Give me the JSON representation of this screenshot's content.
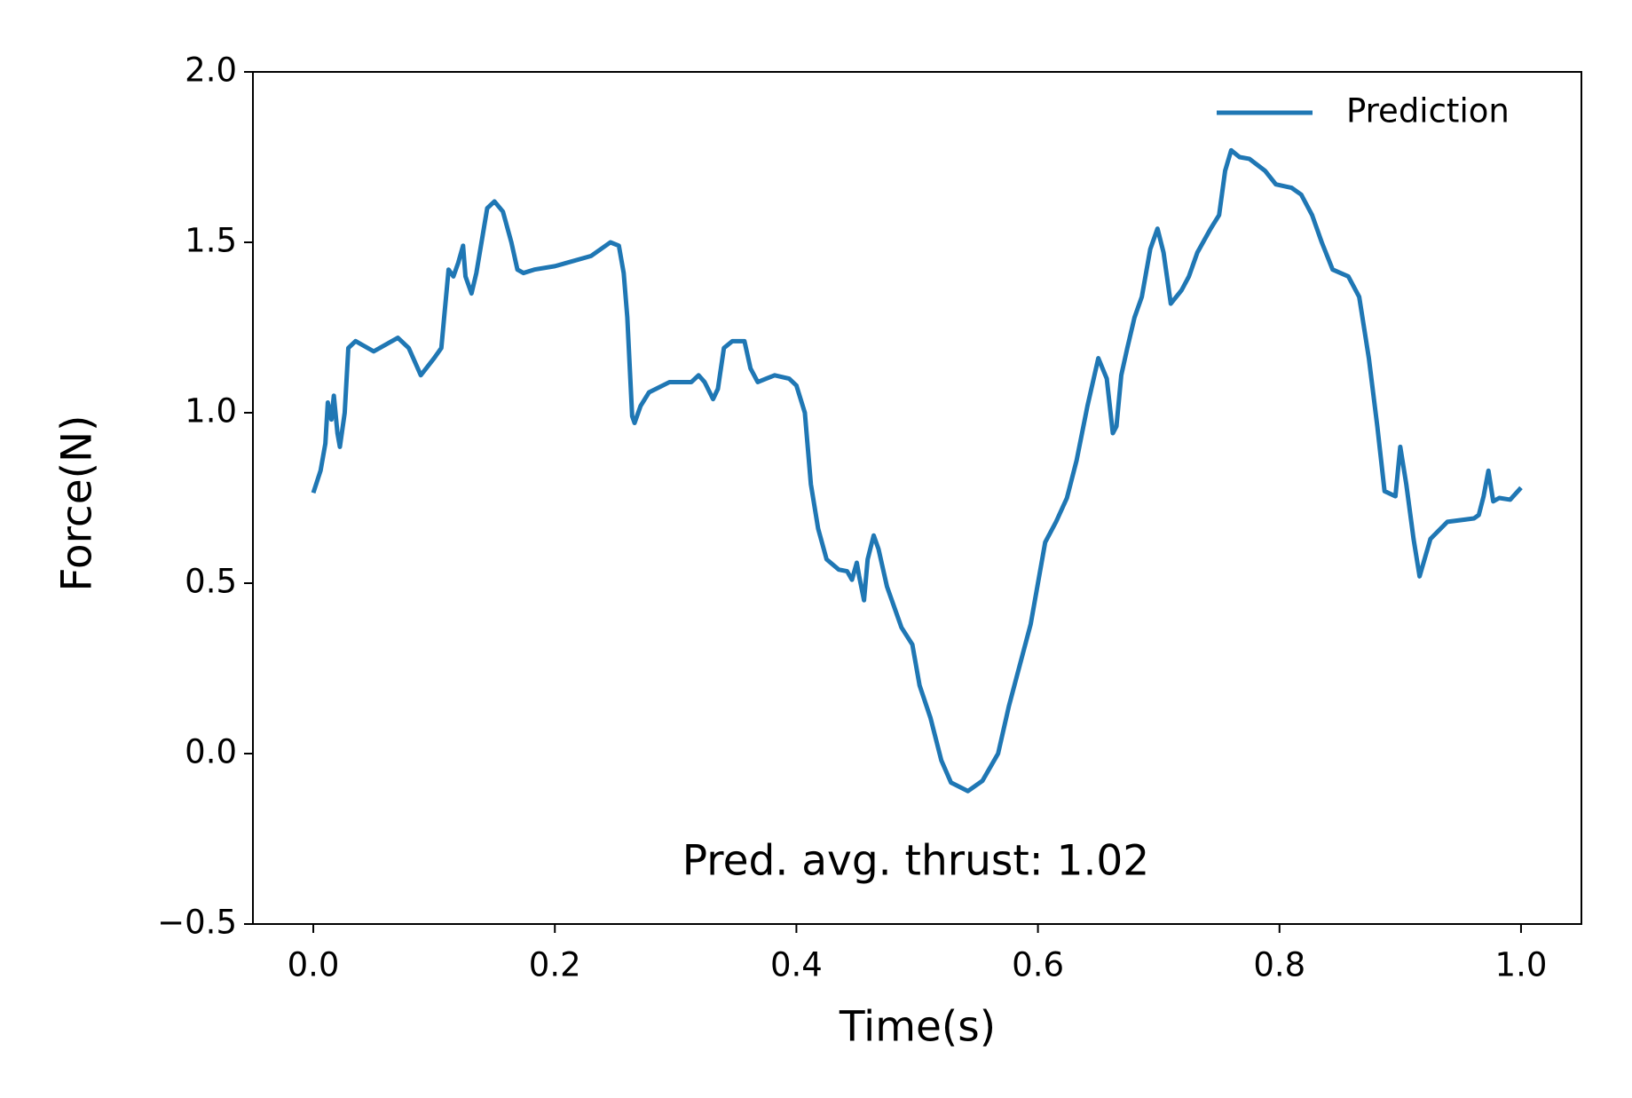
{
  "chart_data": {
    "type": "line",
    "xlabel": "Time(s)",
    "ylabel": "Force(N)",
    "annotation": "Pred. avg. thrust:  1.02",
    "legend": "upper right",
    "xlim": [
      -0.05,
      1.05
    ],
    "xticks": [
      {
        "value": 0,
        "label": "0.0"
      },
      {
        "value": 0.2,
        "label": "0.2"
      },
      {
        "value": 0.4,
        "label": "0.4"
      },
      {
        "value": 0.6,
        "label": "0.6"
      },
      {
        "value": 0.8,
        "label": "0.8"
      },
      {
        "value": 1,
        "label": "1.0"
      }
    ],
    "ylim": [
      -0.5,
      2.0
    ],
    "yticks": [
      {
        "value": -0.5,
        "label": "−0.5"
      },
      {
        "value": 0,
        "label": "0.0"
      },
      {
        "value": 0.5,
        "label": "0.5"
      },
      {
        "value": 1,
        "label": "1.0"
      },
      {
        "value": 1.5,
        "label": "1.5"
      },
      {
        "value": 2,
        "label": "2.0"
      }
    ],
    "grid": false,
    "x": [
      0,
      0.006,
      0.01,
      0.012,
      0.015,
      0.017,
      0.02,
      0.022,
      0.026,
      0.029,
      0.035,
      0.05,
      0.07,
      0.079,
      0.089,
      0.1,
      0.106,
      0.112,
      0.116,
      0.12,
      0.124,
      0.126,
      0.131,
      0.135,
      0.144,
      0.15,
      0.157,
      0.164,
      0.169,
      0.174,
      0.183,
      0.2,
      0.23,
      0.246,
      0.253,
      0.257,
      0.26,
      0.264,
      0.266,
      0.271,
      0.278,
      0.295,
      0.313,
      0.319,
      0.324,
      0.331,
      0.335,
      0.34,
      0.347,
      0.357,
      0.362,
      0.368,
      0.375,
      0.382,
      0.394,
      0.4,
      0.407,
      0.412,
      0.418,
      0.425,
      0.435,
      0.442,
      0.446,
      0.45,
      0.452,
      0.456,
      0.459,
      0.464,
      0.468,
      0.475,
      0.487,
      0.496,
      0.502,
      0.511,
      0.52,
      0.528,
      0.542,
      0.554,
      0.567,
      0.576,
      0.594,
      0.606,
      0.615,
      0.624,
      0.632,
      0.641,
      0.65,
      0.657,
      0.662,
      0.665,
      0.669,
      0.674,
      0.68,
      0.686,
      0.693,
      0.699,
      0.704,
      0.71,
      0.719,
      0.725,
      0.732,
      0.743,
      0.75,
      0.755,
      0.76,
      0.767,
      0.775,
      0.788,
      0.797,
      0.81,
      0.818,
      0.827,
      0.835,
      0.844,
      0.857,
      0.866,
      0.874,
      0.881,
      0.887,
      0.896,
      0.9,
      0.905,
      0.911,
      0.916,
      0.925,
      0.939,
      0.961,
      0.965,
      0.969,
      0.973,
      0.977,
      0.982,
      0.991,
      1.0
    ],
    "series": [
      {
        "name": "Prediction",
        "color": "#1f77b4",
        "values": [
          0.765,
          0.83,
          0.91,
          1.03,
          0.98,
          1.05,
          0.94,
          0.9,
          1.0,
          1.19,
          1.21,
          1.18,
          1.22,
          1.19,
          1.11,
          1.16,
          1.19,
          1.42,
          1.4,
          1.44,
          1.49,
          1.4,
          1.35,
          1.41,
          1.6,
          1.62,
          1.59,
          1.5,
          1.42,
          1.41,
          1.42,
          1.43,
          1.46,
          1.5,
          1.49,
          1.41,
          1.28,
          0.99,
          0.97,
          1.02,
          1.06,
          1.09,
          1.09,
          1.11,
          1.09,
          1.04,
          1.07,
          1.19,
          1.21,
          1.21,
          1.13,
          1.09,
          1.1,
          1.11,
          1.1,
          1.08,
          1.0,
          0.79,
          0.66,
          0.57,
          0.54,
          0.535,
          0.51,
          0.56,
          0.52,
          0.45,
          0.57,
          0.64,
          0.6,
          0.49,
          0.37,
          0.32,
          0.2,
          0.105,
          -0.02,
          -0.085,
          -0.11,
          -0.08,
          0,
          0.14,
          0.38,
          0.62,
          0.68,
          0.75,
          0.86,
          1.02,
          1.16,
          1.1,
          0.94,
          0.96,
          1.11,
          1.19,
          1.28,
          1.34,
          1.48,
          1.54,
          1.47,
          1.32,
          1.36,
          1.4,
          1.47,
          1.54,
          1.58,
          1.71,
          1.77,
          1.75,
          1.745,
          1.71,
          1.67,
          1.66,
          1.64,
          1.58,
          1.5,
          1.42,
          1.4,
          1.34,
          1.16,
          0.96,
          0.77,
          0.755,
          0.9,
          0.79,
          0.63,
          0.52,
          0.63,
          0.68,
          0.69,
          0.7,
          0.755,
          0.83,
          0.74,
          0.75,
          0.745,
          0.78
        ]
      }
    ]
  }
}
